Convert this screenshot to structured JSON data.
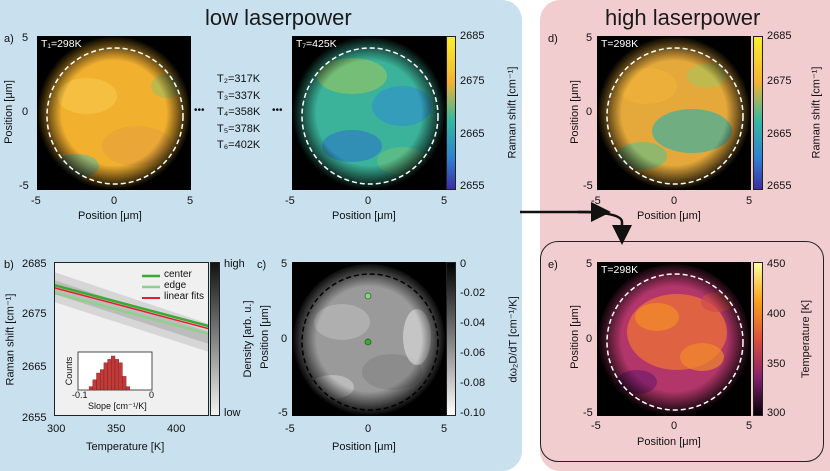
{
  "titles": {
    "low": "low laserpower",
    "high": "high laserpower"
  },
  "panels": {
    "a": {
      "letter": "a)",
      "temp_first": "T₁=298K",
      "temp_last": "T₇=425K",
      "list": [
        "T₂=317K",
        "T₃=337K",
        "T₄=358K",
        "T₅=378K",
        "T₆=402K"
      ],
      "dots": "•••"
    },
    "b": {
      "letter": "b)",
      "legend": [
        "center",
        "edge",
        "linear fits"
      ],
      "inset_ylabel": "Counts",
      "inset_xlabel": "Slope [cm⁻¹/K]",
      "inset_ticks": [
        "-0.1",
        "0"
      ]
    },
    "c": {
      "letter": "c)"
    },
    "d": {
      "letter": "d)",
      "temp": "T=298K"
    },
    "e": {
      "letter": "e)",
      "temp": "T=298K"
    }
  },
  "axes": {
    "position_label": "Position [μm]",
    "position_ticks": [
      "-5",
      "0",
      "5"
    ],
    "raman_label": "Raman shift [cm⁻¹]",
    "raman_ticks": [
      "2685",
      "2675",
      "2665",
      "2655"
    ],
    "temperature_label": "Temperature [K]",
    "temperature_ticks": [
      "300",
      "350",
      "400"
    ],
    "density_label": "Density [arb. u.]",
    "density_ticks": [
      "high",
      "low"
    ],
    "slope_label": "dω₂D/dT [cm⁻¹/K]",
    "slope_ticks": [
      "0",
      "-0.02",
      "-0.04",
      "-0.06",
      "-0.08",
      "-0.10"
    ],
    "temp_cbar_label": "Temperature [K]",
    "temp_cbar_ticks": [
      "450",
      "400",
      "350",
      "300"
    ]
  },
  "colors": {
    "low_bg": "#c9e0ef",
    "high_bg": "#f2cdd0",
    "green": "#3aaa35",
    "lightgreen": "#8fd08a",
    "red": "#e3202a"
  },
  "chart_data": {
    "type": "line",
    "title": "",
    "xlabel": "Temperature [K]",
    "ylabel": "Raman shift [cm⁻¹]",
    "xlim": [
      298,
      425
    ],
    "ylim": [
      2655,
      2685
    ],
    "series": [
      {
        "name": "center",
        "x": [
          298,
          425
        ],
        "values": [
          2680.5,
          2672.5
        ]
      },
      {
        "name": "edge",
        "x": [
          298,
          425
        ],
        "values": [
          2679.0,
          2671.0
        ]
      },
      {
        "name": "linear fits",
        "x": [
          298,
          425
        ],
        "values": [
          2680.0,
          2672.0
        ]
      }
    ],
    "inset": {
      "type": "bar",
      "xlabel": "Slope [cm⁻¹/K]",
      "ylabel": "Counts",
      "xlim": [
        -0.1,
        0
      ],
      "bins": [
        -0.085,
        -0.08,
        -0.075,
        -0.07,
        -0.065,
        -0.06,
        -0.055,
        -0.05,
        -0.045,
        -0.04,
        -0.035
      ],
      "values": [
        1,
        3,
        5,
        6,
        8,
        9,
        10,
        9,
        8,
        4,
        1
      ]
    }
  }
}
